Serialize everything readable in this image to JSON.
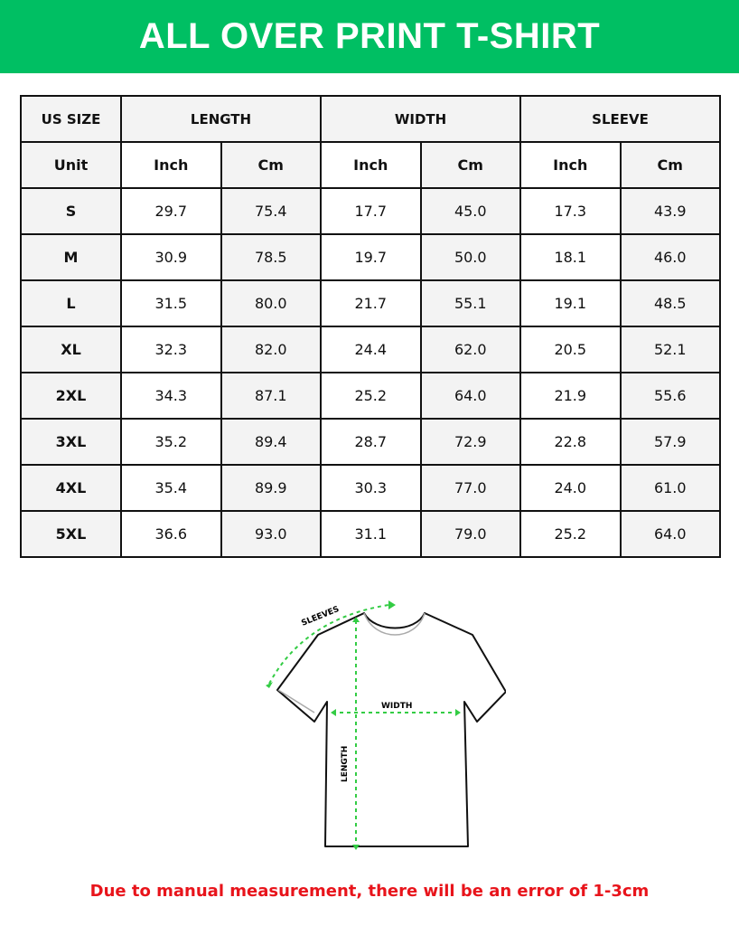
{
  "title": "ALL OVER PRINT T-SHIRT",
  "colors": {
    "banner": "#00bf63",
    "note": "#e8141b",
    "measure_lines": "#33cc44"
  },
  "table": {
    "headers": [
      "US SIZE",
      "LENGTH",
      "WIDTH",
      "SLEEVE"
    ],
    "units": [
      "Unit",
      "Inch",
      "Cm",
      "Inch",
      "Cm",
      "Inch",
      "Cm"
    ],
    "rows": [
      [
        "S",
        "29.7",
        "75.4",
        "17.7",
        "45.0",
        "17.3",
        "43.9"
      ],
      [
        "M",
        "30.9",
        "78.5",
        "19.7",
        "50.0",
        "18.1",
        "46.0"
      ],
      [
        "L",
        "31.5",
        "80.0",
        "21.7",
        "55.1",
        "19.1",
        "48.5"
      ],
      [
        "XL",
        "32.3",
        "82.0",
        "24.4",
        "62.0",
        "20.5",
        "52.1"
      ],
      [
        "2XL",
        "34.3",
        "87.1",
        "25.2",
        "64.0",
        "21.9",
        "55.6"
      ],
      [
        "3XL",
        "35.2",
        "89.4",
        "28.7",
        "72.9",
        "22.8",
        "57.9"
      ],
      [
        "4XL",
        "35.4",
        "89.9",
        "30.3",
        "77.0",
        "24.0",
        "61.0"
      ],
      [
        "5XL",
        "36.6",
        "93.0",
        "31.1",
        "79.0",
        "25.2",
        "64.0"
      ]
    ]
  },
  "diagram": {
    "sleeves_label": "SLEEVES",
    "width_label": "WIDTH",
    "length_label": "LENGTH"
  },
  "note": "Due to manual measurement, there will be an error of 1-3cm"
}
